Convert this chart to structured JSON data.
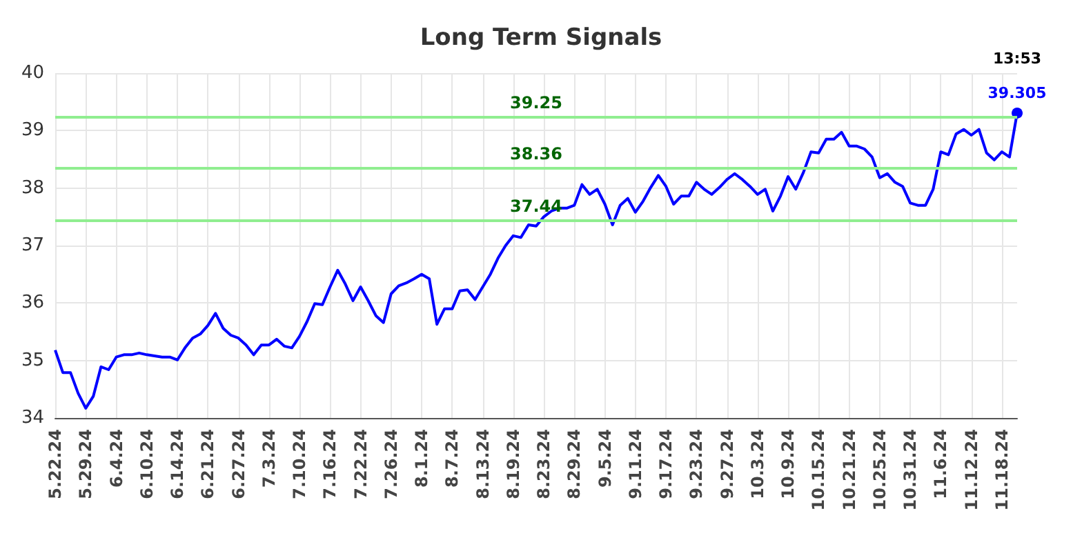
{
  "chart_data": {
    "type": "line",
    "title": "Long Term Signals",
    "categories": [
      "5.22.24",
      null,
      null,
      null,
      "5.29.24",
      null,
      null,
      null,
      "6.4.24",
      null,
      null,
      null,
      "6.10.24",
      null,
      null,
      null,
      "6.14.24",
      null,
      null,
      null,
      "6.21.24",
      null,
      null,
      null,
      "6.27.24",
      null,
      null,
      null,
      "7.3.24",
      null,
      null,
      null,
      "7.10.24",
      null,
      null,
      null,
      "7.16.24",
      null,
      null,
      null,
      "7.22.24",
      null,
      null,
      null,
      "7.26.24",
      null,
      null,
      null,
      "8.1.24",
      null,
      null,
      null,
      "8.7.24",
      null,
      null,
      null,
      "8.13.24",
      null,
      null,
      null,
      "8.19.24",
      null,
      null,
      null,
      "8.23.24",
      null,
      null,
      null,
      "8.29.24",
      null,
      null,
      null,
      "9.5.24",
      null,
      null,
      null,
      "9.11.24",
      null,
      null,
      null,
      "9.17.24",
      null,
      null,
      null,
      "9.23.24",
      null,
      null,
      null,
      "9.27.24",
      null,
      null,
      null,
      "10.3.24",
      null,
      null,
      null,
      "10.9.24",
      null,
      null,
      null,
      "10.15.24",
      null,
      null,
      null,
      "10.21.24",
      null,
      null,
      null,
      "10.25.24",
      null,
      null,
      null,
      "10.31.24",
      null,
      null,
      null,
      "11.6.24",
      null,
      null,
      null,
      "11.12.24",
      null,
      null,
      null,
      "11.18.24",
      null,
      null
    ],
    "series": [
      {
        "color": "#0000ff",
        "values": [
          35.18,
          34.79,
          34.79,
          34.43,
          34.17,
          34.38,
          34.89,
          34.84,
          35.06,
          35.1,
          35.1,
          35.13,
          35.1,
          35.08,
          35.06,
          35.06,
          35.01,
          35.22,
          35.39,
          35.46,
          35.61,
          35.82,
          35.56,
          35.44,
          35.39,
          35.27,
          35.1,
          35.27,
          35.27,
          35.37,
          35.25,
          35.22,
          35.42,
          35.68,
          35.99,
          35.97,
          36.28,
          36.57,
          36.33,
          36.04,
          36.28,
          36.04,
          35.78,
          35.66,
          36.16,
          36.3,
          36.35,
          36.42,
          36.5,
          36.42,
          35.63,
          35.9,
          35.9,
          36.21,
          36.23,
          36.06,
          36.28,
          36.5,
          36.78,
          37.0,
          37.17,
          37.14,
          37.36,
          37.34,
          37.5,
          37.6,
          37.65,
          37.65,
          37.7,
          38.06,
          37.89,
          37.98,
          37.72,
          37.36,
          37.7,
          37.82,
          37.58,
          37.77,
          38.01,
          38.22,
          38.03,
          37.72,
          37.86,
          37.86,
          38.1,
          37.98,
          37.89,
          38.01,
          38.15,
          38.25,
          38.15,
          38.03,
          37.89,
          37.98,
          37.6,
          37.86,
          38.2,
          37.98,
          38.27,
          38.63,
          38.61,
          38.85,
          38.85,
          38.97,
          38.73,
          38.73,
          38.68,
          38.54,
          38.18,
          38.25,
          38.1,
          38.03,
          37.74,
          37.7,
          37.7,
          37.98,
          38.63,
          38.58,
          38.94,
          39.02,
          38.92,
          39.02,
          38.61,
          38.49,
          38.63,
          38.54,
          39.305
        ],
        "value_labels": [
          null,
          null,
          null,
          null,
          null,
          null,
          null,
          null,
          null,
          null,
          null,
          null,
          null,
          null,
          null,
          null,
          null,
          null,
          null,
          null,
          null,
          null,
          null,
          null,
          null,
          null,
          null,
          null,
          null,
          null,
          null,
          null,
          null,
          null,
          null,
          null,
          null,
          null,
          null,
          null,
          null,
          null,
          null,
          null,
          null,
          null,
          null,
          null,
          null,
          null,
          null,
          null,
          null,
          null,
          null,
          null,
          null,
          null,
          null,
          null,
          null,
          null,
          null,
          null,
          null,
          null,
          null,
          null,
          null,
          null,
          null,
          null,
          null,
          null,
          null,
          null,
          null,
          null,
          null,
          null,
          null,
          null,
          null,
          null,
          null,
          null,
          null,
          null,
          null,
          null,
          null,
          null,
          null,
          null,
          null,
          null,
          null,
          null,
          null,
          null,
          null,
          null,
          null,
          null,
          null,
          null,
          null,
          null,
          null,
          null,
          null,
          null,
          null,
          null,
          null,
          null,
          null,
          null,
          null,
          null,
          null,
          null,
          null,
          null,
          null,
          null,
          "39.305"
        ]
      }
    ],
    "ylim": [
      34,
      40
    ],
    "yticks": [
      34,
      35,
      36,
      37,
      38,
      39,
      40
    ],
    "grid": true,
    "marker": "none",
    "ref_lines": [
      {
        "axis": "y",
        "value": 39.25,
        "label": "39.25",
        "color": "#90ee90"
      },
      {
        "axis": "y",
        "value": 38.36,
        "label": "38.36",
        "color": "#90ee90"
      },
      {
        "axis": "y",
        "value": 37.44,
        "label": "37.44",
        "color": "#90ee90"
      }
    ],
    "annotations": [
      "13:53"
    ]
  }
}
